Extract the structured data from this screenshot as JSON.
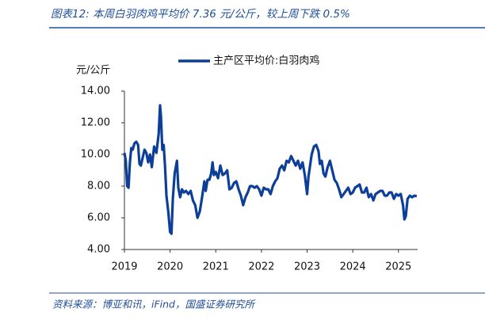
{
  "chart_data": {
    "type": "line",
    "title": "图表12: 本周白羽肉鸡平均价 7.36 元/公斤，较上周下跌 0.5%",
    "y_label": "元/公斤",
    "source": "资料来源：博亚和讯，iFind，国盛证券研究所",
    "x": [
      2019.0,
      2019.03,
      2019.06,
      2019.09,
      2019.12,
      2019.15,
      2019.18,
      2019.22,
      2019.26,
      2019.3,
      2019.33,
      2019.36,
      2019.4,
      2019.44,
      2019.48,
      2019.52,
      2019.56,
      2019.6,
      2019.65,
      2019.7,
      2019.75,
      2019.78,
      2019.8,
      2019.83,
      2019.86,
      2019.89,
      2019.92,
      2019.96,
      2020.0,
      2020.03,
      2020.06,
      2020.1,
      2020.15,
      2020.18,
      2020.22,
      2020.26,
      2020.3,
      2020.35,
      2020.4,
      2020.45,
      2020.5,
      2020.55,
      2020.6,
      2020.65,
      2020.7,
      2020.75,
      2020.78,
      2020.82,
      2020.86,
      2020.9,
      2020.93,
      2020.96,
      2021.0,
      2021.05,
      2021.1,
      2021.15,
      2021.2,
      2021.25,
      2021.3,
      2021.35,
      2021.4,
      2021.45,
      2021.5,
      2021.55,
      2021.6,
      2021.65,
      2021.7,
      2021.75,
      2021.8,
      2021.85,
      2021.9,
      2021.95,
      2022.0,
      2022.05,
      2022.1,
      2022.15,
      2022.2,
      2022.25,
      2022.3,
      2022.35,
      2022.4,
      2022.45,
      2022.5,
      2022.55,
      2022.6,
      2022.65,
      2022.7,
      2022.75,
      2022.8,
      2022.85,
      2022.9,
      2022.95,
      2023.0,
      2023.03,
      2023.06,
      2023.1,
      2023.15,
      2023.2,
      2023.25,
      2023.28,
      2023.32,
      2023.36,
      2023.4,
      2023.45,
      2023.5,
      2023.55,
      2023.6,
      2023.65,
      2023.7,
      2023.75,
      2023.8,
      2023.85,
      2023.9,
      2023.95,
      2024.0,
      2024.05,
      2024.1,
      2024.15,
      2024.2,
      2024.25,
      2024.3,
      2024.35,
      2024.4,
      2024.45,
      2024.5,
      2024.55,
      2024.6,
      2024.65,
      2024.7,
      2024.75,
      2024.8,
      2024.85,
      2024.9,
      2024.95,
      2025.0,
      2025.05,
      2025.1,
      2025.13,
      2025.16,
      2025.2,
      2025.25,
      2025.3,
      2025.35,
      2025.4
    ],
    "series": [
      {
        "name": "主产区平均价:白羽肉鸡",
        "color": "#0d3f98",
        "values": [
          10.1,
          9.6,
          8.0,
          7.9,
          9.5,
          10.4,
          10.3,
          10.7,
          10.8,
          10.6,
          9.4,
          9.3,
          9.8,
          10.3,
          10.1,
          9.5,
          10.0,
          9.2,
          10.5,
          10.1,
          11.3,
          13.1,
          12.4,
          10.3,
          10.6,
          9.2,
          7.4,
          6.4,
          5.1,
          5.0,
          7.2,
          8.8,
          9.6,
          7.9,
          7.3,
          7.8,
          7.6,
          7.7,
          7.5,
          7.7,
          7.1,
          6.8,
          6.0,
          6.4,
          7.3,
          8.3,
          7.7,
          8.4,
          8.4,
          8.8,
          9.5,
          8.7,
          8.9,
          8.5,
          9.3,
          8.7,
          8.8,
          9.0,
          7.8,
          7.9,
          8.2,
          8.3,
          7.8,
          7.4,
          6.8,
          7.3,
          7.6,
          8.0,
          8.0,
          7.9,
          8.0,
          7.8,
          7.4,
          7.9,
          7.8,
          7.8,
          7.5,
          8.0,
          8.3,
          8.5,
          9.1,
          9.3,
          9.0,
          9.6,
          9.5,
          9.9,
          9.6,
          9.3,
          9.6,
          9.1,
          9.5,
          8.7,
          7.5,
          8.6,
          9.2,
          10.0,
          10.5,
          10.6,
          10.2,
          9.4,
          9.6,
          8.8,
          8.6,
          9.2,
          9.6,
          9.0,
          8.4,
          8.2,
          7.8,
          7.3,
          7.5,
          7.7,
          7.9,
          7.5,
          7.6,
          7.9,
          8.0,
          8.1,
          7.6,
          7.6,
          7.9,
          7.3,
          7.5,
          7.1,
          7.5,
          7.6,
          7.7,
          7.7,
          7.4,
          7.4,
          7.6,
          7.6,
          7.2,
          7.5,
          7.4,
          7.5,
          6.8,
          5.9,
          6.1,
          7.2,
          7.4,
          7.3,
          7.4,
          7.36
        ]
      }
    ],
    "xlim": [
      2019,
      2025.42
    ],
    "xticks": [
      2019,
      2020,
      2021,
      2022,
      2023,
      2024,
      2025
    ],
    "ylim": [
      4,
      14
    ],
    "yticks": [
      {
        "value": 4,
        "label": "4.00"
      },
      {
        "value": 6,
        "label": "6.00"
      },
      {
        "value": 8,
        "label": "8.00"
      },
      {
        "value": 10,
        "label": "10.00"
      },
      {
        "value": 12,
        "label": "12.00"
      },
      {
        "value": 14,
        "label": "14.00"
      }
    ],
    "grid": false,
    "legend": "top"
  }
}
